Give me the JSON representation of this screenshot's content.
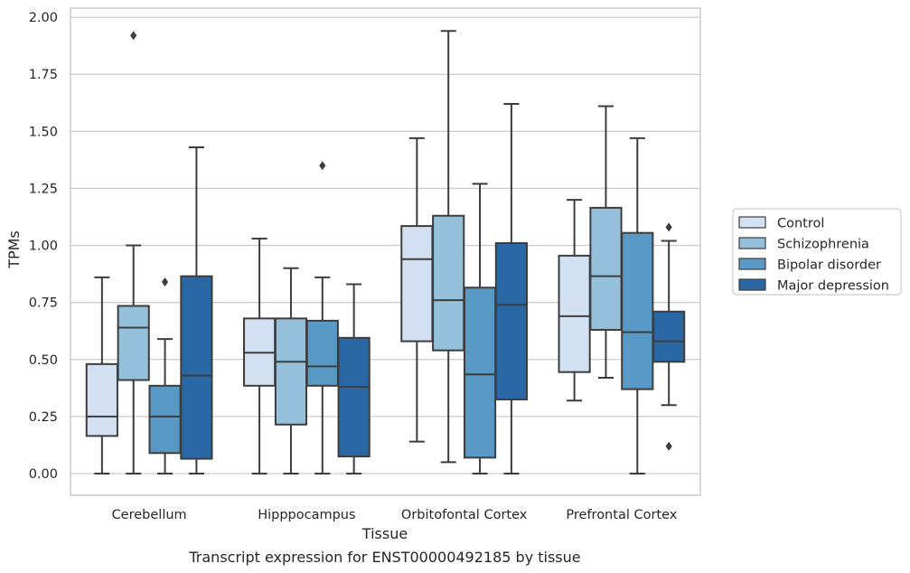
{
  "caption": "Transcript expression for ENST00000492185 by tissue",
  "chart_data": {
    "type": "boxplot",
    "xlabel": "Tissue",
    "ylabel": "TPMs",
    "ylim": [
      -0.095,
      2.04
    ],
    "yticks": [
      "0.00",
      "0.25",
      "0.50",
      "0.75",
      "1.00",
      "1.25",
      "1.50",
      "1.75",
      "2.00"
    ],
    "grid": true,
    "legend_position": "right",
    "categories": [
      "Cerebellum",
      "Hipppocampus",
      "Orbitofontal Cortex",
      "Prefrontal Cortex"
    ],
    "series": [
      {
        "name": "Control",
        "color": "#d2e1f1",
        "boxes": [
          {
            "whislo": 0.0,
            "q1": 0.165,
            "med": 0.25,
            "q3": 0.48,
            "whishi": 0.86,
            "fliers": []
          },
          {
            "whislo": 0.0,
            "q1": 0.385,
            "med": 0.53,
            "q3": 0.68,
            "whishi": 1.03,
            "fliers": []
          },
          {
            "whislo": 0.14,
            "q1": 0.58,
            "med": 0.94,
            "q3": 1.085,
            "whishi": 1.47,
            "fliers": []
          },
          {
            "whislo": 0.32,
            "q1": 0.445,
            "med": 0.69,
            "q3": 0.955,
            "whishi": 1.2,
            "fliers": []
          }
        ]
      },
      {
        "name": "Schizophrenia",
        "color": "#94c0dc",
        "boxes": [
          {
            "whislo": 0.0,
            "q1": 0.41,
            "med": 0.64,
            "q3": 0.735,
            "whishi": 1.0,
            "fliers": [
              1.92
            ]
          },
          {
            "whislo": 0.0,
            "q1": 0.215,
            "med": 0.49,
            "q3": 0.68,
            "whishi": 0.9,
            "fliers": []
          },
          {
            "whislo": 0.05,
            "q1": 0.54,
            "med": 0.76,
            "q3": 1.13,
            "whishi": 1.94,
            "fliers": []
          },
          {
            "whislo": 0.42,
            "q1": 0.63,
            "med": 0.865,
            "q3": 1.165,
            "whishi": 1.61,
            "fliers": []
          }
        ]
      },
      {
        "name": "Bipolar disorder",
        "color": "#5899c5",
        "boxes": [
          {
            "whislo": 0.0,
            "q1": 0.09,
            "med": 0.25,
            "q3": 0.385,
            "whishi": 0.59,
            "fliers": [
              0.84
            ]
          },
          {
            "whislo": 0.0,
            "q1": 0.385,
            "med": 0.47,
            "q3": 0.67,
            "whishi": 0.86,
            "fliers": [
              1.35
            ]
          },
          {
            "whislo": 0.0,
            "q1": 0.07,
            "med": 0.435,
            "q3": 0.815,
            "whishi": 1.27,
            "fliers": []
          },
          {
            "whislo": 0.0,
            "q1": 0.37,
            "med": 0.62,
            "q3": 1.055,
            "whishi": 1.47,
            "fliers": []
          }
        ]
      },
      {
        "name": "Major depression",
        "color": "#2a67a5",
        "boxes": [
          {
            "whislo": 0.0,
            "q1": 0.065,
            "med": 0.43,
            "q3": 0.865,
            "whishi": 1.43,
            "fliers": []
          },
          {
            "whislo": 0.0,
            "q1": 0.075,
            "med": 0.38,
            "q3": 0.595,
            "whishi": 0.83,
            "fliers": []
          },
          {
            "whislo": 0.0,
            "q1": 0.325,
            "med": 0.74,
            "q3": 1.01,
            "whishi": 1.62,
            "fliers": []
          },
          {
            "whislo": 0.3,
            "q1": 0.49,
            "med": 0.58,
            "q3": 0.71,
            "whishi": 1.02,
            "fliers": [
              0.12,
              1.08
            ]
          }
        ]
      }
    ]
  }
}
